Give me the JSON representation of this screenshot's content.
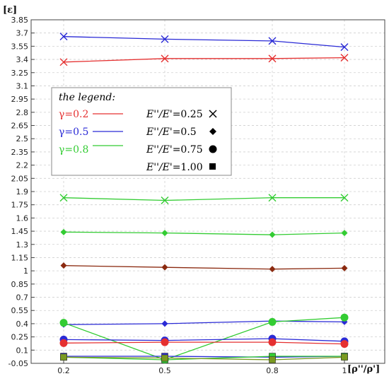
{
  "chart_data": {
    "type": "line",
    "xlabel": "[ρ''/ρ']",
    "ylabel": "[ε]",
    "x": [
      0.2,
      0.5,
      0.8,
      1
    ],
    "x_tick_labels": [
      "0.2",
      "0.5",
      "0.8",
      "1"
    ],
    "ylim": [
      -0.05,
      3.85
    ],
    "y_ticks": [
      -0.05,
      0.1,
      0.25,
      0.4,
      0.55,
      0.7,
      0.85,
      1,
      1.15,
      1.3,
      1.45,
      1.6,
      1.75,
      1.9,
      2.05,
      2.2,
      2.35,
      2.5,
      2.65,
      2.8,
      2.95,
      3.1,
      3.25,
      3.4,
      3.55,
      3.7,
      3.85
    ],
    "y_tick_labels": [
      "-0.05",
      "0.1",
      "0.25",
      "0.4",
      "0.55",
      "0.7",
      "0.85",
      "1",
      "1.15",
      "1.3",
      "1.45",
      "1.6",
      "1.75",
      "1.9",
      "2.05",
      "2.2",
      "2.35",
      "2.5",
      "2.65",
      "2.8",
      "2.95",
      "3.1",
      "3.25",
      "3.4",
      "3.55",
      "3.7",
      "3.85"
    ],
    "grid": true,
    "legend": {
      "title": "the legend:",
      "placement": "upper-left",
      "gamma": [
        {
          "label": "γ=0.2",
          "color": "#e53030"
        },
        {
          "label": "γ=0.5",
          "color": "#2a2ad6"
        },
        {
          "label": "γ=0.8",
          "color": "#33cc33"
        }
      ],
      "ratio": [
        {
          "prefix": "E''/E'",
          "value": "=0.25",
          "marker": "x"
        },
        {
          "prefix": "E''/E'",
          "value": "=0.5",
          "marker": "diamond"
        },
        {
          "prefix": "E''/E'",
          "value": "=0.75",
          "marker": "circle"
        },
        {
          "prefix": "E''/E'",
          "value": "=1.00",
          "marker": "square"
        }
      ]
    },
    "series": [
      {
        "gamma": "γ=0.2",
        "ratio": "=0.25",
        "color": "#e53030",
        "marker": "x",
        "values": [
          3.37,
          3.41,
          3.41,
          3.42
        ]
      },
      {
        "gamma": "γ=0.5",
        "ratio": "=0.25",
        "color": "#2a2ad6",
        "marker": "x",
        "values": [
          3.66,
          3.63,
          3.61,
          3.54
        ]
      },
      {
        "gamma": "γ=0.8",
        "ratio": "=0.25",
        "color": "#33cc33",
        "marker": "x",
        "values": [
          1.83,
          1.8,
          1.83,
          1.83
        ]
      },
      {
        "gamma": "γ=0.8",
        "ratio": "=0.5",
        "color": "#33cc33",
        "marker": "diamond",
        "values": [
          1.44,
          1.43,
          1.41,
          1.43
        ]
      },
      {
        "gamma": "γ=0.2",
        "ratio": "=0.5",
        "color": "#8b2a10",
        "marker": "diamond",
        "values": [
          1.06,
          1.04,
          1.02,
          1.03
        ]
      },
      {
        "gamma": "γ=0.5",
        "ratio": "=0.5",
        "color": "#2a2ad6",
        "marker": "diamond",
        "values": [
          0.39,
          0.4,
          0.43,
          0.42
        ]
      },
      {
        "gamma": "γ=0.8",
        "ratio": "=0.75",
        "color": "#33cc33",
        "marker": "circle",
        "values": [
          0.41,
          -0.01,
          0.42,
          0.47
        ]
      },
      {
        "gamma": "γ=0.5",
        "ratio": "=0.75",
        "color": "#2a2ad6",
        "marker": "circle",
        "values": [
          0.22,
          0.21,
          0.23,
          0.2
        ]
      },
      {
        "gamma": "γ=0.2",
        "ratio": "=0.75",
        "color": "#e53030",
        "marker": "circle",
        "values": [
          0.18,
          0.19,
          0.19,
          0.17
        ]
      },
      {
        "gamma": "γ=0.5",
        "ratio": "=1.00",
        "color": "#2a2ad6",
        "marker": "square",
        "values": [
          0.03,
          0.03,
          0.02,
          0.03
        ]
      },
      {
        "gamma": "γ=0.8",
        "ratio": "=1.00",
        "color": "#33cc33",
        "marker": "square",
        "values": [
          0.02,
          -0.01,
          0.03,
          0.03
        ]
      },
      {
        "gamma": "γ=0.2",
        "ratio": "=1.00",
        "color": "#7a9a20",
        "marker": "square",
        "values": [
          0.02,
          0.01,
          -0.01,
          0.02
        ]
      }
    ]
  }
}
